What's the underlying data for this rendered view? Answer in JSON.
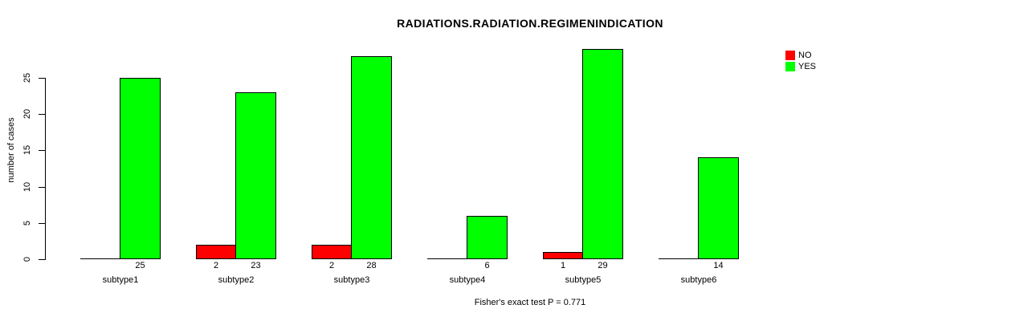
{
  "chart_data": {
    "type": "bar",
    "grouped": true,
    "title": "RADIATIONS.RADIATION.REGIMENINDICATION",
    "ylabel": "number of cases",
    "xlabel": "",
    "caption": "Fisher's exact test P = 0.771",
    "categories": [
      "subtype1",
      "subtype2",
      "subtype3",
      "subtype4",
      "subtype5",
      "subtype6"
    ],
    "series": [
      {
        "name": "NO",
        "color": "#FF0000",
        "values": [
          0,
          2,
          2,
          0,
          1,
          0
        ]
      },
      {
        "name": "YES",
        "color": "#00FF00",
        "values": [
          25,
          23,
          28,
          6,
          29,
          14
        ]
      }
    ],
    "bar_labels": [
      [
        "",
        "2",
        "2",
        "",
        "1",
        ""
      ],
      [
        "25",
        "23",
        "28",
        "6",
        "29",
        "14"
      ]
    ],
    "yticks": [
      0,
      5,
      10,
      15,
      20,
      25
    ],
    "ylim": [
      0,
      29
    ],
    "grid": false,
    "axis_color": "#000000",
    "bar_border_color": "#000000",
    "legend": {
      "position": "top-right",
      "entries": [
        {
          "label": "NO",
          "color": "#FF0000"
        },
        {
          "label": "YES",
          "color": "#00FF00"
        }
      ]
    }
  }
}
